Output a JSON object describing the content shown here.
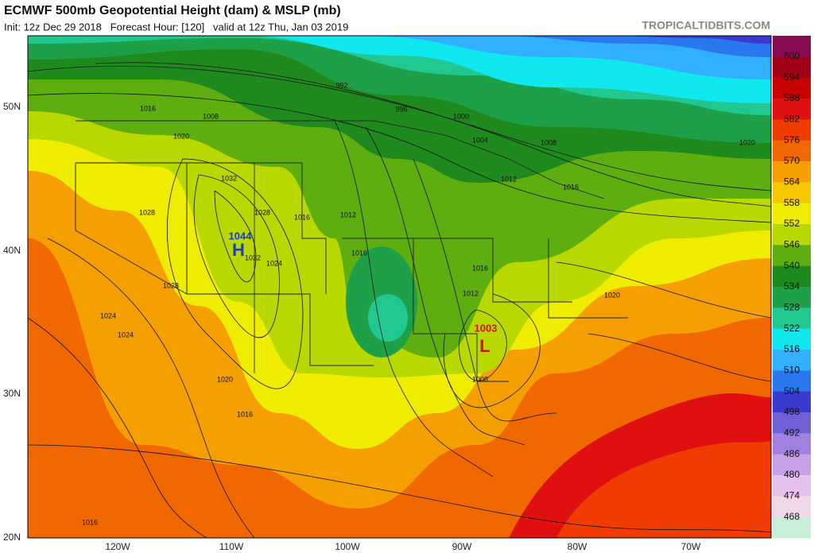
{
  "header": {
    "title": "ECMWF 500mb Geopotential Height (dam) & MSLP (mb)",
    "subtitle": "Init: 12z Dec 29 2018   Forecast Hour: [120]   valid at 12z Thu, Jan 03 2019",
    "site": "TROPICALTIDBITS.COM"
  },
  "map": {
    "lat_labels": [
      "50N",
      "40N",
      "30N",
      "20N"
    ],
    "lon_labels": [
      "120W",
      "110W",
      "100W",
      "90W",
      "80W",
      "70W"
    ],
    "isobar_labels": [
      992,
      996,
      1000,
      1004,
      1008,
      1012,
      1016,
      1020,
      1016,
      1008,
      1020,
      1032,
      1028,
      1016,
      1012,
      1016,
      1024,
      1032,
      1028,
      1028,
      1024,
      1024,
      1020,
      1016,
      1016,
      1012,
      1020,
      1008,
      1016
    ],
    "high": {
      "label": "H",
      "value": 1044
    },
    "low": {
      "label": "L",
      "value": 1003
    }
  },
  "colorbar": {
    "colors": [
      "#8a0a52",
      "#a00018",
      "#c80000",
      "#e01010",
      "#f03c00",
      "#f26800",
      "#f5a000",
      "#f7c800",
      "#f0ec00",
      "#b8d800",
      "#5eae10",
      "#1e8a1e",
      "#1ea048",
      "#20c890",
      "#10e8f0",
      "#30b0ff",
      "#2a78f0",
      "#3a3ad0",
      "#7060d8",
      "#a080e0",
      "#c8a0e8",
      "#e6c0ec",
      "#f0d8e8",
      "#c8f0d8"
    ],
    "labels": [
      600,
      594,
      588,
      582,
      576,
      570,
      564,
      558,
      552,
      546,
      540,
      534,
      528,
      522,
      516,
      510,
      504,
      498,
      492,
      486,
      480,
      474,
      468
    ]
  }
}
